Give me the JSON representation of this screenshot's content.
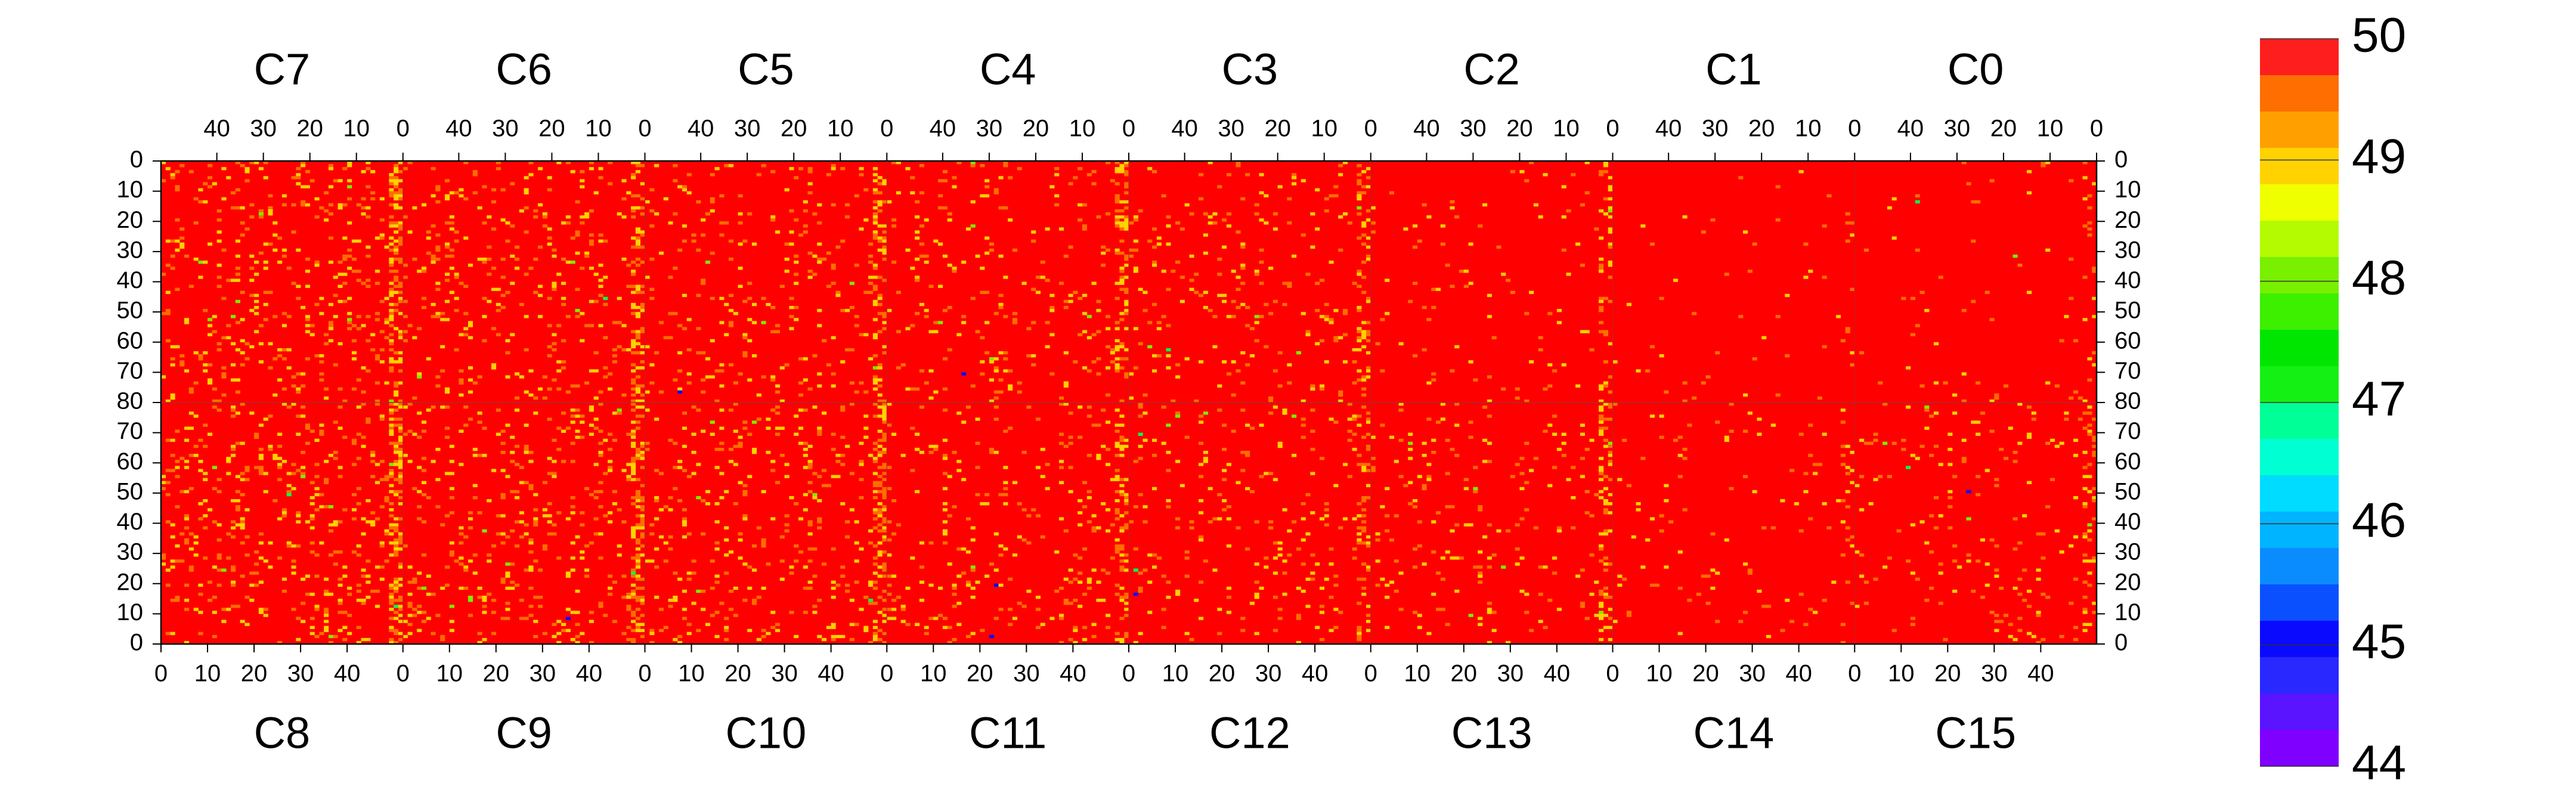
{
  "chart_data": {
    "type": "heatmap",
    "title": "",
    "description_value_range": [
      44,
      50
    ],
    "colorbar": {
      "min": 44,
      "max": 50,
      "tick_labels": [
        "50",
        "49",
        "48",
        "47",
        "46",
        "45",
        "44"
      ],
      "tick_values": [
        50,
        49,
        48,
        47,
        46,
        45,
        44
      ],
      "levels": 20,
      "palette": [
        "#7F00FF",
        "#5A14FF",
        "#2828FF",
        "#0A0AFF",
        "#0A50FF",
        "#0A8CFF",
        "#00B4FF",
        "#00DCFF",
        "#00FFD2",
        "#00FF96",
        "#00FF50",
        "#14F014",
        "#00E600",
        "#3CF000",
        "#78F000",
        "#B4FA00",
        "#F0FF00",
        "#FFD200",
        "#FFA000",
        "#FF6E00",
        "#FF1E1E",
        "#FF0000"
      ]
    },
    "top_row": {
      "chips": [
        "C7",
        "C6",
        "C5",
        "C4",
        "C3",
        "C2",
        "C1",
        "C0"
      ],
      "x_tick_labels": [
        "40",
        "30",
        "20",
        "10",
        "0"
      ],
      "x_tick_values": [
        40,
        30,
        20,
        10,
        0
      ],
      "x_axis_reversed": true,
      "y_tick_labels": [
        "0",
        "10",
        "20",
        "30",
        "40",
        "50",
        "60",
        "70",
        "80"
      ],
      "y_tick_values": [
        0,
        10,
        20,
        30,
        40,
        50,
        60,
        70,
        80
      ],
      "y_axis_reversed": true
    },
    "bottom_row": {
      "chips": [
        "C8",
        "C9",
        "C10",
        "C11",
        "C12",
        "C13",
        "C14",
        "C15"
      ],
      "x_tick_labels": [
        "0",
        "10",
        "20",
        "30",
        "40"
      ],
      "x_tick_values": [
        0,
        10,
        20,
        30,
        40
      ],
      "x_axis_reversed": false,
      "y_tick_labels": [
        "80",
        "70",
        "60",
        "50",
        "40",
        "30",
        "20",
        "10",
        "0"
      ],
      "y_tick_values": [
        80,
        70,
        60,
        50,
        40,
        30,
        20,
        10,
        0
      ],
      "y_axis_reversed": true
    },
    "columns_per_chip": 52,
    "rows_per_chip": 80,
    "dominant_value": 50,
    "scattered_values": [
      49.5,
      49,
      48,
      47,
      45
    ]
  }
}
